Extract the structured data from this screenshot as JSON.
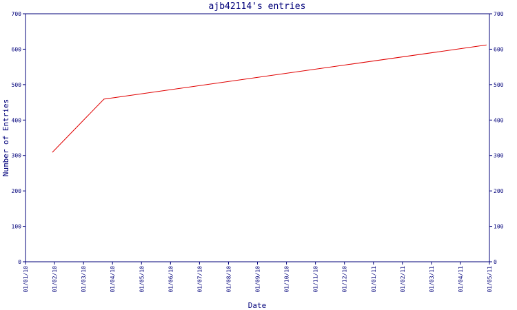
{
  "chart_data": {
    "type": "line",
    "title": "ajb42114's entries",
    "xlabel": "Date",
    "ylabel": "Number of Entries",
    "ylim": [
      0,
      700
    ],
    "yticks": [
      0,
      100,
      200,
      300,
      400,
      500,
      600,
      700
    ],
    "x_tick_labels": [
      "01/01/10",
      "01/02/10",
      "01/03/10",
      "01/04/10",
      "01/05/10",
      "01/06/10",
      "01/07/10",
      "01/08/10",
      "01/09/10",
      "01/10/10",
      "01/11/10",
      "01/12/10",
      "01/01/11",
      "01/02/11",
      "01/03/11",
      "01/04/11",
      "01/05/11"
    ],
    "xlim": [
      "2010-01-01",
      "2011-05-01"
    ],
    "grid": false,
    "series": [
      {
        "x": [
          "2010-01-29",
          "2010-03-24",
          "2011-04-28"
        ],
        "y": [
          309,
          459,
          612
        ]
      }
    ],
    "colors": {
      "axis": "#00007a",
      "line": "#e00000"
    }
  }
}
